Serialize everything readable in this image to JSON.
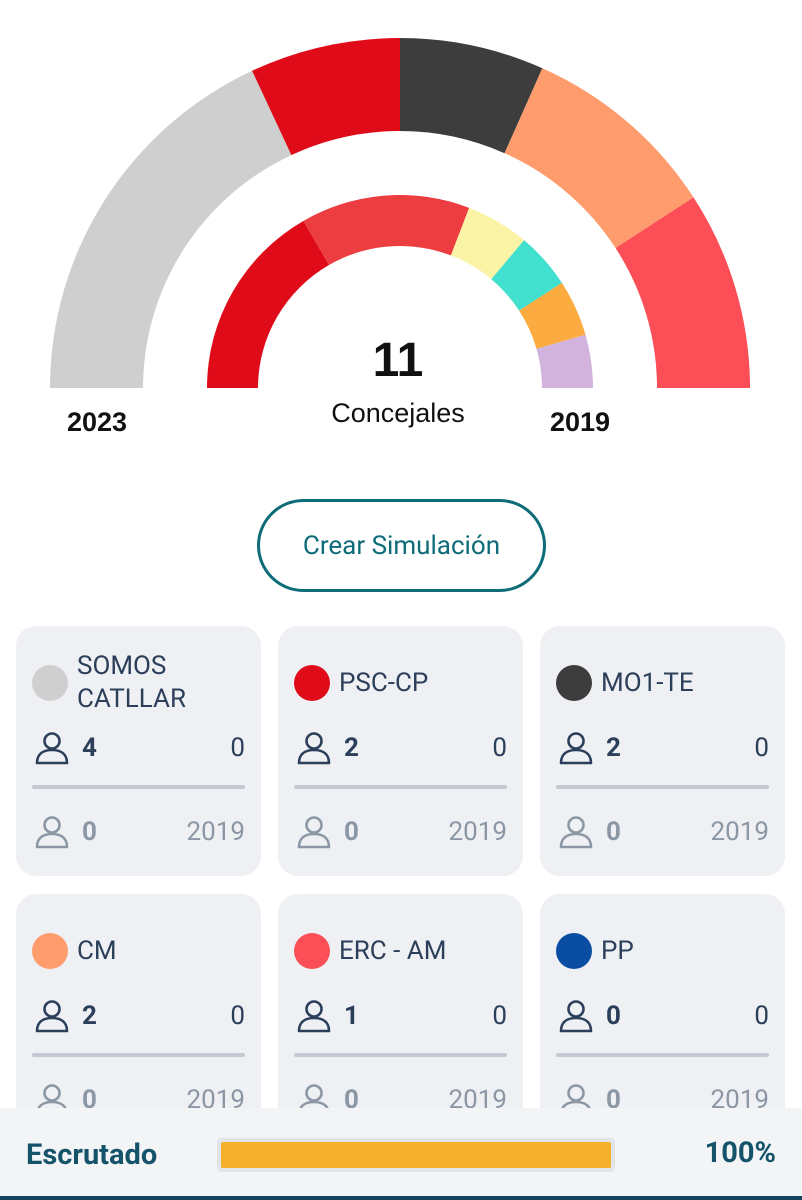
{
  "chamber": {
    "total_seats": "11",
    "caption": "Concejales",
    "outer_label": "2023",
    "inner_label": "2019",
    "outer_segments": [
      {
        "color": "#cfcfcf"
      },
      {
        "color": "#e00b19"
      },
      {
        "color": "#3d3d3d"
      },
      {
        "color": "#ff9c6e"
      },
      {
        "color": "#fb4e56"
      }
    ],
    "inner_segments": [
      {
        "color": "#e00b19"
      },
      {
        "color": "#ec3e41"
      },
      {
        "color": "#fbf3a6"
      },
      {
        "color": "#41e0cf"
      },
      {
        "color": "#fbab3f"
      },
      {
        "color": "#d2b3de"
      }
    ]
  },
  "simulation_button": "Crear Simulación",
  "parties": [
    {
      "name": "SOMOS CATLLAR",
      "color": "#cfcfcf",
      "seats": "4",
      "change": "0",
      "prev_seats": "0",
      "prev_year": "2019"
    },
    {
      "name": "PSC-CP",
      "color": "#e00b19",
      "seats": "2",
      "change": "0",
      "prev_seats": "0",
      "prev_year": "2019"
    },
    {
      "name": "MO1-TE",
      "color": "#3d3d3d",
      "seats": "2",
      "change": "0",
      "prev_seats": "0",
      "prev_year": "2019"
    },
    {
      "name": "CM",
      "color": "#ff9c6e",
      "seats": "2",
      "change": "0",
      "prev_seats": "0",
      "prev_year": "2019"
    },
    {
      "name": "ERC - AM",
      "color": "#fb4e56",
      "seats": "1",
      "change": "0",
      "prev_seats": "0",
      "prev_year": "2019"
    },
    {
      "name": "PP",
      "color": "#0a4ea3",
      "seats": "0",
      "change": "0",
      "prev_seats": "0",
      "prev_year": "2019"
    }
  ],
  "scrutiny": {
    "label": "Escrutado",
    "percent_text": "100%",
    "progress": 1.0,
    "bar_color": "#f7b02b"
  }
}
